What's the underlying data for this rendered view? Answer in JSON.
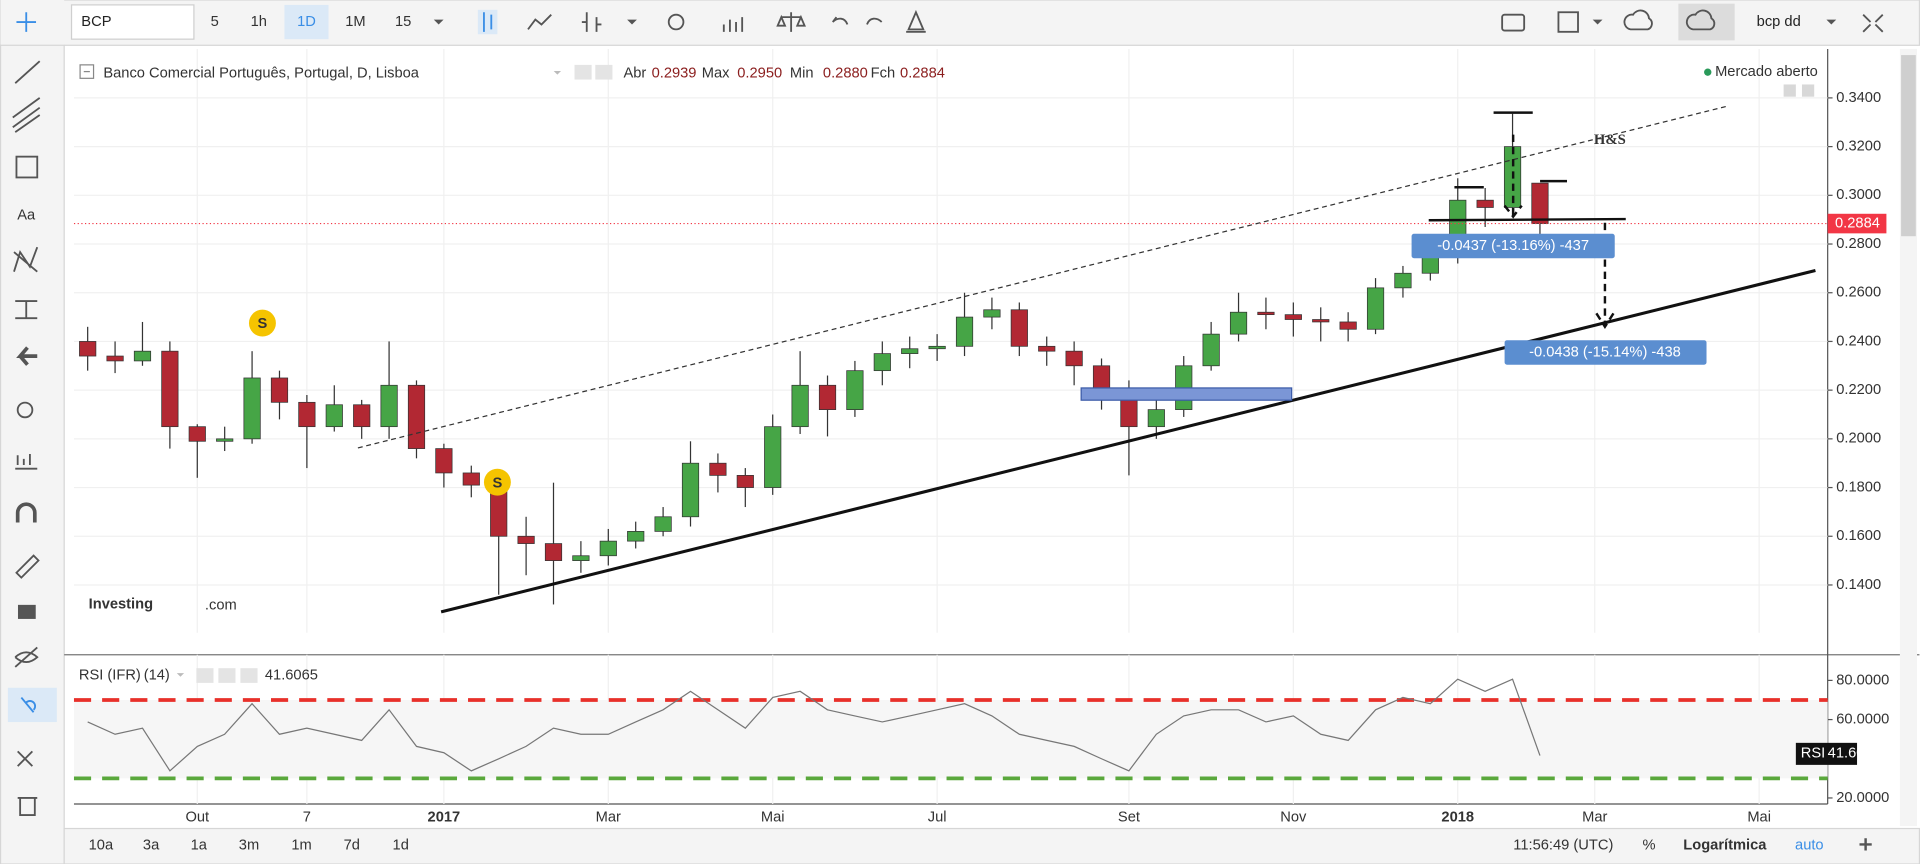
{
  "toolbar": {
    "symbol": "BCP",
    "intervals": [
      "5",
      "1h",
      "1D",
      "1M",
      "15"
    ],
    "layout": "bcp dd",
    "tools": [
      "Aa"
    ]
  },
  "header": {
    "title": "Banco Comercial Português, Portugal, D, Lisboa",
    "ohlc": [
      {
        "label": "Abr",
        "value": "0.2939"
      },
      {
        "label": "Max",
        "value": "0.2950"
      },
      {
        "label": "Min",
        "value": "0.2880"
      },
      {
        "label": "Fch",
        "value": "0.2884"
      }
    ],
    "status": "Mercado aberto"
  },
  "logo": {
    "brand": "Investing",
    "suffix": ".com"
  },
  "footer": {
    "ranges": [
      "10a",
      "3a",
      "1a",
      "3m",
      "1m",
      "7d",
      "1d"
    ],
    "time": "11:56:49 (UTC)",
    "percent": "%",
    "scale": "Logarítmica",
    "auto": "auto"
  },
  "chart_data": [
    {
      "type": "candlestick",
      "up_color": "#46a546",
      "down_color": "#b22833",
      "grid": true,
      "categories": [
        null,
        null,
        null,
        null,
        "Out",
        null,
        null,
        null,
        "7",
        null,
        null,
        null,
        null,
        "2017",
        null,
        null,
        null,
        null,
        null,
        "Mar",
        null,
        null,
        null,
        null,
        null,
        "Mai",
        null,
        null,
        null,
        null,
        null,
        "Jul",
        null,
        null,
        null,
        null,
        null,
        null,
        "Set",
        null,
        null,
        null,
        null,
        null,
        "Nov",
        null,
        null,
        null,
        null,
        null,
        "2018",
        null,
        null,
        null,
        null,
        "Mar",
        null,
        null,
        null,
        null,
        null,
        "Mai",
        null,
        null
      ],
      "open": [
        0.24,
        0.234,
        0.232,
        0.236,
        0.205,
        0.199,
        0.2,
        0.225,
        0.215,
        0.205,
        0.214,
        0.205,
        0.222,
        0.196,
        0.186,
        0.181,
        0.16,
        0.157,
        0.15,
        0.152,
        0.158,
        0.162,
        0.168,
        0.19,
        0.185,
        0.18,
        0.205,
        0.222,
        0.212,
        0.228,
        0.235,
        0.237,
        0.238,
        0.25,
        0.253,
        0.238,
        0.236,
        0.23,
        0.22,
        0.205,
        0.212,
        0.23,
        0.243,
        0.252,
        0.251,
        0.249,
        0.248,
        0.245,
        0.262,
        0.268,
        0.275,
        0.298,
        0.295,
        0.305,
        null,
        null,
        null,
        null,
        null,
        null,
        null,
        null,
        null,
        null
      ],
      "high": [
        0.246,
        0.24,
        0.248,
        0.24,
        0.206,
        0.205,
        0.236,
        0.228,
        0.218,
        0.222,
        0.216,
        0.24,
        0.224,
        0.198,
        0.189,
        0.183,
        0.168,
        0.182,
        0.158,
        0.163,
        0.166,
        0.172,
        0.199,
        0.194,
        0.188,
        0.21,
        0.236,
        0.226,
        0.232,
        0.24,
        0.242,
        0.243,
        0.26,
        0.258,
        0.256,
        0.242,
        0.24,
        0.233,
        0.224,
        0.219,
        0.234,
        0.248,
        0.26,
        0.258,
        0.256,
        0.254,
        0.252,
        0.266,
        0.271,
        0.279,
        0.307,
        0.303,
        0.3335,
        0.305,
        null,
        null,
        null,
        null,
        null,
        null,
        null,
        null,
        null,
        null
      ],
      "low": [
        0.228,
        0.227,
        0.23,
        0.196,
        0.184,
        0.195,
        0.198,
        0.208,
        0.188,
        0.203,
        0.2,
        0.2,
        0.192,
        0.18,
        0.176,
        0.136,
        0.144,
        0.132,
        0.145,
        0.148,
        0.155,
        0.16,
        0.164,
        0.178,
        0.172,
        0.177,
        0.202,
        0.201,
        0.209,
        0.222,
        0.229,
        0.232,
        0.234,
        0.245,
        0.234,
        0.23,
        0.222,
        0.212,
        0.185,
        0.2,
        0.209,
        0.228,
        0.24,
        0.245,
        0.242,
        0.24,
        0.24,
        0.243,
        0.258,
        0.265,
        0.272,
        0.287,
        0.292,
        0.284,
        null,
        null,
        null,
        null,
        null,
        null,
        null,
        null,
        null,
        null
      ],
      "close": [
        0.234,
        0.232,
        0.236,
        0.205,
        0.199,
        0.2,
        0.225,
        0.215,
        0.205,
        0.214,
        0.205,
        0.222,
        0.196,
        0.186,
        0.181,
        0.16,
        0.157,
        0.15,
        0.152,
        0.158,
        0.162,
        0.168,
        0.19,
        0.185,
        0.18,
        0.205,
        0.222,
        0.212,
        0.228,
        0.235,
        0.237,
        0.238,
        0.25,
        0.253,
        0.238,
        0.236,
        0.23,
        0.22,
        0.205,
        0.212,
        0.23,
        0.243,
        0.252,
        0.251,
        0.249,
        0.248,
        0.245,
        0.262,
        0.268,
        0.275,
        0.298,
        0.295,
        0.32,
        0.2884,
        null,
        null,
        null,
        null,
        null,
        null,
        null,
        null,
        null,
        null
      ],
      "last_color": "#f23645",
      "ylim": [
        0.1204,
        0.3601
      ],
      "yticks": [
        {
          "value": 0.14,
          "label": "0.1400"
        },
        {
          "value": 0.16,
          "label": "0.1600"
        },
        {
          "value": 0.18,
          "label": "0.1800"
        },
        {
          "value": 0.2,
          "label": "0.2000"
        },
        {
          "value": 0.22,
          "label": "0.2200"
        },
        {
          "value": 0.24,
          "label": "0.2400"
        },
        {
          "value": 0.26,
          "label": "0.2600"
        },
        {
          "value": 0.28,
          "label": "0.2800"
        },
        {
          "value": 0.3,
          "label": "0.3000"
        },
        {
          "value": 0.32,
          "label": "0.3200"
        },
        {
          "value": 0.34,
          "label": "0.3400"
        }
      ],
      "annotations": [
        "H&S",
        "-0.0437 (-13.16%) -437",
        "-0.0438 (-15.14%) -438"
      ],
      "markers": [
        "S",
        "S"
      ]
    },
    {
      "type": "line",
      "title": "RSI (IFR)",
      "period": "(14)",
      "color": "#777777",
      "grid": true,
      "values": [
        58.8,
        52.5,
        55.6,
        33.8,
        46.3,
        52.5,
        68.1,
        52.5,
        55.6,
        52.5,
        49.4,
        65.0,
        46.3,
        43.1,
        33.8,
        40.0,
        46.3,
        55.6,
        52.5,
        52.5,
        58.8,
        65.0,
        74.4,
        65.0,
        55.6,
        71.3,
        74.4,
        65.0,
        61.9,
        58.8,
        61.9,
        65.0,
        68.1,
        61.9,
        52.5,
        49.4,
        46.3,
        40.0,
        33.8,
        52.5,
        61.9,
        65.0,
        65.0,
        58.8,
        61.9,
        52.5,
        49.4,
        65.0,
        71.3,
        68.1,
        80.6,
        74.4,
        80.6,
        41.6065,
        null,
        null,
        null,
        null,
        null,
        null,
        null,
        null,
        null,
        null
      ],
      "ylim": [
        16.9,
        93.1
      ],
      "yticks": [
        {
          "value": 20,
          "label": "20.0000"
        },
        {
          "value": 60,
          "label": "60.0000"
        },
        {
          "value": 80,
          "label": "80.0000"
        }
      ],
      "levels": [
        {
          "value": 70,
          "color": "#e8302a"
        },
        {
          "value": 30,
          "color": "#5aa83c"
        }
      ]
    }
  ]
}
